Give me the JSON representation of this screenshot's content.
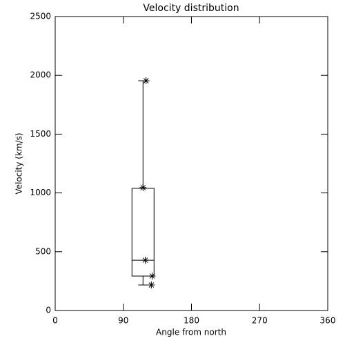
{
  "chart_data": {
    "type": "box",
    "title": "Velocity distribution",
    "x_label": "Angle from north",
    "y_label": "Velocity (km/s)",
    "xlim": [
      0,
      360
    ],
    "xticks": [
      0,
      90,
      180,
      270,
      360
    ],
    "ylim": [
      0,
      2500
    ],
    "yticks": [
      0,
      500,
      1000,
      1500,
      2000,
      2500
    ],
    "box": {
      "position": 116,
      "min": 217,
      "q1": 293,
      "median": 428,
      "q3": 1039,
      "max": 1954
    },
    "points": {
      "x": [
        120,
        116,
        119,
        128,
        127
      ],
      "y": [
        1954,
        1045,
        428,
        293,
        217
      ]
    }
  }
}
